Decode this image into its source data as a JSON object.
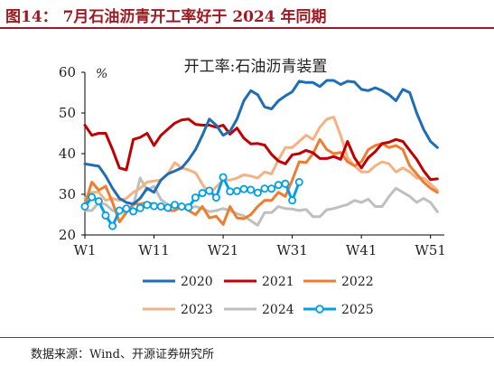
{
  "figure": {
    "caption": "图14： 7月石油沥青开工率好于 2024 年同期",
    "source": "数据来源：Wind、开源证券研究所"
  },
  "chart_data": {
    "type": "line",
    "title": "开工率:石油沥青装置",
    "ylabel": "%",
    "xlabel": "",
    "ylim": [
      20,
      60
    ],
    "yticks": [
      20,
      30,
      40,
      50,
      60
    ],
    "xlim": [
      1,
      53
    ],
    "xticks": [
      {
        "value": 1,
        "label": "W1"
      },
      {
        "value": 11,
        "label": "W11"
      },
      {
        "value": 21,
        "label": "W21"
      },
      {
        "value": 31,
        "label": "W31"
      },
      {
        "value": 41,
        "label": "W41"
      },
      {
        "value": 51,
        "label": "W51"
      }
    ],
    "grid": false,
    "legend_position": "bottom",
    "series": [
      {
        "name": "2020",
        "color": "#1f6eb5",
        "marker": false,
        "x": [
          1,
          2,
          3,
          4,
          5,
          6,
          7,
          8,
          9,
          10,
          11,
          12,
          13,
          14,
          15,
          16,
          17,
          18,
          19,
          20,
          21,
          22,
          23,
          24,
          25,
          26,
          27,
          28,
          29,
          30,
          31,
          32,
          33,
          34,
          35,
          36,
          37,
          38,
          39,
          40,
          41,
          42,
          43,
          44,
          45,
          46,
          47,
          48,
          49,
          50,
          51,
          52
        ],
        "y": [
          37.5,
          37.2,
          36.9,
          34.5,
          31.5,
          29,
          28,
          27.6,
          29,
          31.5,
          30.5,
          33.5,
          35,
          35.7,
          36.5,
          38.5,
          41,
          44.5,
          48.5,
          47,
          44.5,
          45.5,
          48.5,
          53,
          55.5,
          54.5,
          51.5,
          51,
          53,
          54.2,
          55.2,
          57.8,
          57.5,
          57.5,
          56.5,
          58,
          58,
          57,
          57.8,
          57.6,
          55.8,
          55.5,
          56.2,
          55.5,
          54.5,
          53,
          55.8,
          55,
          50,
          46,
          43,
          41.5
        ]
      },
      {
        "name": "2021",
        "color": "#c00000",
        "marker": false,
        "x": [
          1,
          2,
          3,
          4,
          5,
          6,
          7,
          8,
          9,
          10,
          11,
          12,
          13,
          14,
          15,
          16,
          17,
          18,
          19,
          20,
          21,
          22,
          23,
          24,
          25,
          26,
          27,
          28,
          29,
          30,
          31,
          32,
          33,
          34,
          35,
          36,
          37,
          38,
          39,
          40,
          41,
          42,
          43,
          44,
          45,
          46,
          47,
          48,
          49,
          50,
          51,
          52
        ],
        "y": [
          47,
          44.5,
          45,
          45,
          41,
          36.5,
          36,
          43.5,
          44,
          45,
          42,
          44.5,
          46,
          47.5,
          48.3,
          48.5,
          47.2,
          47,
          47,
          46.5,
          47,
          44.8,
          46.3,
          43.8,
          42.4,
          42.5,
          42.1,
          39.8,
          38.2,
          37.5,
          39.7,
          40,
          40.8,
          40.2,
          38.8,
          38.8,
          39.3,
          38.6,
          43,
          39,
          36.5,
          39,
          40.5,
          42.5,
          42.8,
          43.5,
          43,
          40.8,
          38.6,
          35.8,
          33.6,
          33.8
        ]
      },
      {
        "name": "2022",
        "color": "#ed7d31",
        "marker": false,
        "x": [
          1,
          2,
          3,
          4,
          5,
          6,
          7,
          8,
          9,
          10,
          11,
          12,
          13,
          14,
          15,
          16,
          17,
          18,
          19,
          20,
          21,
          22,
          23,
          24,
          25,
          26,
          27,
          28,
          29,
          30,
          31,
          32,
          33,
          34,
          35,
          36,
          37,
          38,
          39,
          40,
          41,
          42,
          43,
          44,
          45,
          46,
          47,
          48,
          49,
          50,
          51,
          52
        ],
        "y": [
          27.5,
          33,
          31,
          32,
          28,
          23.2,
          25.5,
          27.6,
          27.6,
          28,
          27.5,
          27,
          26,
          26,
          27,
          26,
          25,
          27,
          24.2,
          24.6,
          22.6,
          27,
          24.2,
          24,
          25,
          27,
          28.5,
          28.5,
          30.5,
          29.5,
          33.5,
          38,
          37.8,
          40,
          43.5,
          41,
          40,
          40.3,
          38,
          37,
          38,
          41,
          42,
          42.5,
          41.5,
          42,
          41,
          37,
          35,
          33,
          31.5,
          30.5
        ]
      },
      {
        "name": "2023",
        "color": "#f4b183",
        "marker": false,
        "x": [
          1,
          2,
          3,
          4,
          5,
          6,
          7,
          8,
          9,
          10,
          11,
          12,
          13,
          14,
          15,
          16,
          17,
          18,
          19,
          20,
          21,
          22,
          23,
          24,
          25,
          26,
          27,
          28,
          29,
          30,
          31,
          32,
          33,
          34,
          35,
          36,
          37,
          38,
          39,
          40,
          41,
          42,
          43,
          44,
          45,
          46,
          47,
          48,
          49,
          50,
          51,
          52
        ],
        "y": [
          29,
          30.5,
          30.5,
          28.5,
          29,
          28.5,
          29,
          30.5,
          31.5,
          33,
          33.3,
          33.5,
          35,
          37.8,
          36.5,
          36,
          35.3,
          32.5,
          30,
          31.8,
          33.5,
          33.5,
          34,
          34.8,
          34.5,
          34,
          35.5,
          35,
          38.5,
          41.5,
          41.5,
          43,
          44.5,
          43.5,
          46.5,
          48.5,
          49,
          44.5,
          39,
          37,
          35.5,
          35.5,
          37,
          38,
          37.5,
          35.5,
          36.5,
          35.5,
          34,
          34,
          32.5,
          31
        ]
      },
      {
        "name": "2024",
        "color": "#bfbfbf",
        "marker": false,
        "x": [
          1,
          2,
          3,
          4,
          5,
          6,
          7,
          8,
          9,
          10,
          11,
          12,
          13,
          14,
          15,
          16,
          17,
          18,
          19,
          20,
          21,
          22,
          23,
          24,
          25,
          26,
          27,
          28,
          29,
          30,
          31,
          32,
          33,
          34,
          35,
          36,
          37,
          38,
          39,
          40,
          41,
          42,
          43,
          44,
          45,
          46,
          47,
          48,
          49,
          50,
          51,
          52
        ],
        "y": [
          26,
          26,
          28,
          27.5,
          26,
          25.7,
          25.5,
          27.3,
          34,
          31,
          32,
          28.7,
          27.5,
          26.8,
          27,
          26.5,
          27,
          26.5,
          25.7,
          26,
          26.5,
          26,
          25.2,
          24.7,
          23.5,
          22.4,
          25.5,
          25.5,
          27,
          26.5,
          26.4,
          26,
          26.3,
          24.5,
          24.5,
          26.2,
          26.5,
          27,
          27.5,
          28.5,
          28,
          28.8,
          27,
          27,
          29.5,
          31.5,
          30.5,
          29.5,
          28,
          29,
          28,
          25.7
        ]
      },
      {
        "name": "2025",
        "color": "#00a0e9",
        "marker": true,
        "x": [
          1,
          2,
          3,
          4,
          5,
          6,
          7,
          8,
          9,
          10,
          11,
          12,
          13,
          14,
          15,
          16,
          17,
          18,
          19,
          20,
          21,
          22,
          23,
          24,
          25,
          26,
          27,
          28,
          29,
          30,
          31,
          32
        ],
        "y": [
          27,
          29.3,
          28.3,
          24.8,
          22.2,
          26,
          26.5,
          25.8,
          26.6,
          27.4,
          27.1,
          27,
          26.7,
          27.4,
          27,
          26.8,
          29.2,
          30.3,
          30.9,
          29.2,
          34.2,
          30.7,
          30.8,
          31.3,
          31.1,
          30.4,
          31.4,
          31.4,
          32.3,
          32.6,
          28.5,
          33
        ]
      }
    ]
  }
}
